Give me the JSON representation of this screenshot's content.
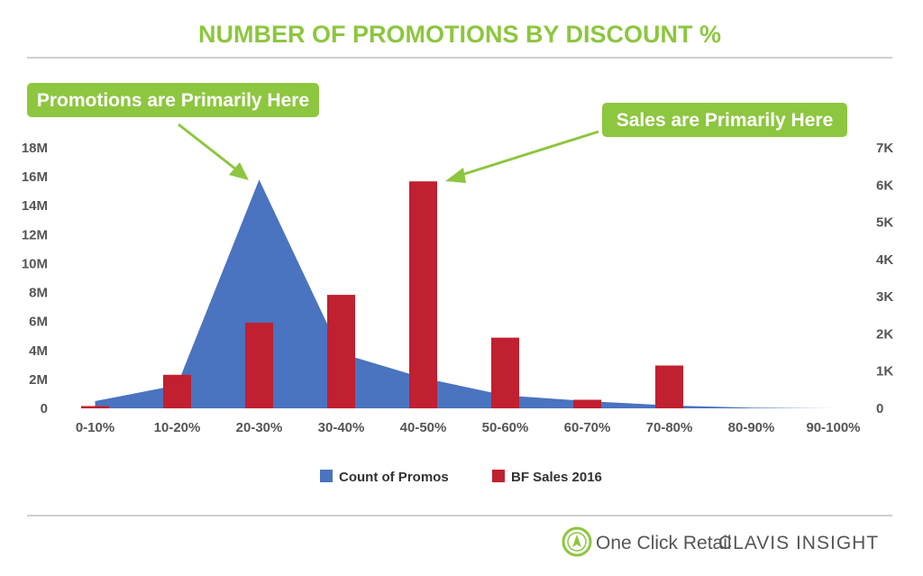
{
  "colors": {
    "title": "#8dc63f",
    "callout": "#8dc63f",
    "promos": "#4a73c0",
    "sales": "#c0202f",
    "rule": "#d0d0d0",
    "logo_ring": "#8dc63f"
  },
  "chart_data": {
    "type": "bar",
    "title": "NUMBER OF PROMOTIONS BY DISCOUNT %",
    "categories": [
      "0-10%",
      "10-20%",
      "20-30%",
      "30-40%",
      "40-50%",
      "50-60%",
      "60-70%",
      "70-80%",
      "80-90%",
      "90-100%"
    ],
    "series": [
      {
        "name": "Count of Promos",
        "type": "area",
        "axis": "left",
        "values": [
          500000,
          1600000,
          15800000,
          3800000,
          2100000,
          900000,
          500000,
          200000,
          50000,
          0
        ]
      },
      {
        "name": "BF Sales 2016",
        "type": "bar",
        "axis": "right",
        "values": [
          60,
          900,
          2300,
          3050,
          6100,
          1900,
          230,
          1150,
          0,
          0
        ]
      }
    ],
    "y_left": {
      "ylim": [
        0,
        18000000
      ],
      "ticks": [
        0,
        2000000,
        4000000,
        6000000,
        8000000,
        10000000,
        12000000,
        14000000,
        16000000,
        18000000
      ],
      "tick_labels": [
        "0",
        "2M",
        "4M",
        "6M",
        "8M",
        "10M",
        "12M",
        "14M",
        "16M",
        "18M"
      ]
    },
    "y_right": {
      "ylim": [
        0,
        7000
      ],
      "ticks": [
        0,
        1000,
        2000,
        3000,
        4000,
        5000,
        6000,
        7000
      ],
      "tick_labels": [
        "0",
        "1K",
        "2K",
        "3K",
        "4K",
        "5K",
        "6K",
        "7K"
      ]
    },
    "grid": false,
    "legend": "bottom",
    "annotations": [
      {
        "text": "Promotions are Primarily Here",
        "points_to_category": "20-30%"
      },
      {
        "text": "Sales are Primarily Here",
        "points_to_category": "40-50%"
      }
    ]
  },
  "footer": {
    "logo1": "One Click Retail",
    "logo2": "CLAVIS INSIGHT"
  }
}
